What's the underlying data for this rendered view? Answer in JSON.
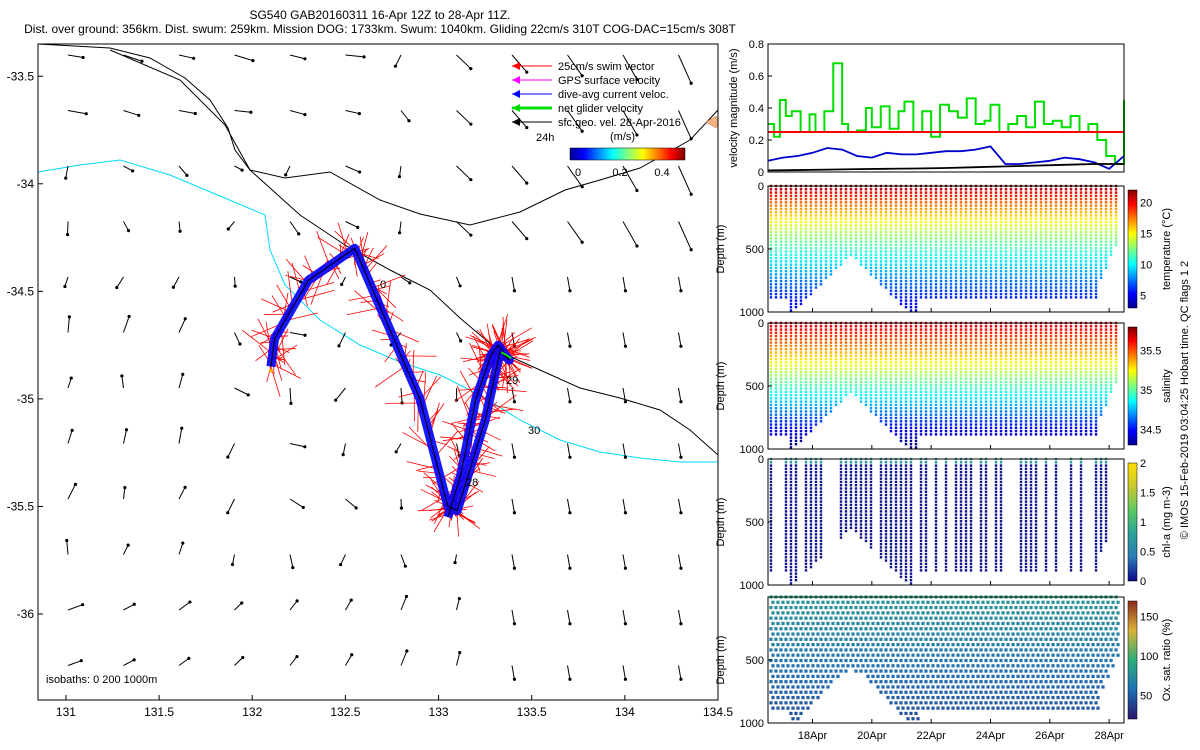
{
  "header": {
    "line1": "SG540 GAB20160311 16-Apr 12Z to 28-Apr 11Z.",
    "line2": "Dist. over ground: 356km. Dist. swum: 259km. Mission DOG: 1733km. Swum: 1040km. Gliding 22cm/s 310T COG-DAC=15cm/s 308T"
  },
  "credit": "© IMOS 15-Feb-2019 03:04:25 Hobart time. QC flags 1  2",
  "chart_data": [
    {
      "type": "map",
      "x_ticks": [
        "131",
        "131.5",
        "132",
        "132.5",
        "133",
        "133.5",
        "134",
        "134.5"
      ],
      "y_ticks": [
        "-33.5",
        "-34",
        "-34.5",
        "-35",
        "-35.5",
        "-36"
      ],
      "xlim": [
        130.85,
        134.5
      ],
      "ylim": [
        -36.4,
        -33.35
      ],
      "legend": {
        "items": [
          {
            "label": "25cm/s swim vector",
            "color": "#ff0000"
          },
          {
            "label": "GPS surface velocity",
            "color": "#ff00ff"
          },
          {
            "label": "dive-avg current veloc.",
            "color": "#0000ff"
          },
          {
            "label": "net glider velocity",
            "color": "#00dd00"
          },
          {
            "label": "sfc.geo. vel. 28-Apr-2016",
            "color": "#000000"
          }
        ],
        "time_label": "24h",
        "colorbar_unit": "(m/s)",
        "colorbar_ticks": [
          "0",
          "0.2",
          "0.4"
        ]
      },
      "isobaths_label": "isobaths: 0   200  1000m",
      "track_labels": [
        "0",
        "29",
        "30",
        "28"
      ],
      "glider_track": {
        "lon": [
          132.1,
          132.12,
          132.3,
          132.55,
          132.7,
          132.9,
          133.05,
          133.1,
          133.25,
          133.33,
          133.38,
          133.32,
          133.28,
          133.2,
          133.12,
          133.05
        ],
        "lat": [
          -34.85,
          -34.72,
          -34.45,
          -34.3,
          -34.6,
          -35.0,
          -35.5,
          -35.52,
          -35.1,
          -34.78,
          -34.82,
          -34.75,
          -34.8,
          -35.0,
          -35.35,
          -35.55
        ]
      }
    },
    {
      "type": "line",
      "ylabel": "velocity magnitude (m/s)",
      "ylim": [
        0,
        0.8
      ],
      "y_ticks": [
        "0",
        "0.2",
        "0.4",
        "0.6",
        "0.8"
      ],
      "x_range_days": [
        16.5,
        28.5
      ],
      "series": [
        {
          "color": "#00dd00",
          "x": [
            16.5,
            16.7,
            16.9,
            17.1,
            17.3,
            17.6,
            17.9,
            18.1,
            18.4,
            18.7,
            19.0,
            19.2,
            19.5,
            19.8,
            20.0,
            20.3,
            20.6,
            20.9,
            21.1,
            21.4,
            21.7,
            22.0,
            22.3,
            22.6,
            22.9,
            23.2,
            23.5,
            23.8,
            24.0,
            24.3,
            24.6,
            24.9,
            25.2,
            25.5,
            25.8,
            26.1,
            26.4,
            26.7,
            27.0,
            27.3,
            27.6,
            27.9,
            28.2,
            28.5
          ],
          "values": [
            0.3,
            0.22,
            0.45,
            0.35,
            0.38,
            0.25,
            0.36,
            0.25,
            0.38,
            0.68,
            0.3,
            0.25,
            0.26,
            0.4,
            0.28,
            0.41,
            0.27,
            0.38,
            0.44,
            0.25,
            0.38,
            0.22,
            0.42,
            0.38,
            0.34,
            0.46,
            0.3,
            0.32,
            0.42,
            0.25,
            0.3,
            0.35,
            0.28,
            0.44,
            0.3,
            0.32,
            0.28,
            0.35,
            0.25,
            0.3,
            0.2,
            0.1,
            0.05,
            0.45
          ]
        },
        {
          "color": "#0000cc",
          "x": [
            16.5,
            17,
            17.5,
            18,
            18.5,
            19,
            19.5,
            20,
            20.5,
            21,
            21.5,
            22,
            22.5,
            23,
            23.5,
            24,
            24.5,
            25,
            25.5,
            26,
            26.5,
            27,
            27.5,
            28,
            28.5
          ],
          "values": [
            0.07,
            0.09,
            0.1,
            0.12,
            0.15,
            0.14,
            0.1,
            0.09,
            0.12,
            0.11,
            0.11,
            0.12,
            0.13,
            0.13,
            0.14,
            0.16,
            0.05,
            0.05,
            0.06,
            0.07,
            0.09,
            0.08,
            0.06,
            0.02,
            0.1
          ]
        },
        {
          "color": "#000000",
          "x": [
            16.5,
            17.5,
            18.5,
            19.5,
            20.5,
            21.5,
            22.5,
            23.5,
            24.5,
            25.5,
            26.5,
            27.5,
            28.5
          ],
          "values": [
            0.01,
            0.012,
            0.015,
            0.018,
            0.02,
            0.022,
            0.025,
            0.03,
            0.035,
            0.04,
            0.045,
            0.05,
            0.05
          ]
        },
        {
          "color": "#ff0000",
          "x": [
            16.5,
            28.5
          ],
          "values": [
            0.25,
            0.25
          ]
        }
      ]
    },
    {
      "type": "scatter",
      "ylabel": "Depth (m)",
      "y_ticks": [
        "0",
        "500",
        "1000"
      ],
      "ylim": [
        1000,
        0
      ],
      "colorbar_label": "temperature (°C)",
      "colorbar_ticks": [
        "5",
        "10",
        "15",
        "20"
      ],
      "clim": [
        3,
        22
      ]
    },
    {
      "type": "scatter",
      "ylabel": "Depth (m)",
      "y_ticks": [
        "0",
        "500",
        "1000"
      ],
      "ylim": [
        1000,
        0
      ],
      "colorbar_label": "salinity",
      "colorbar_ticks": [
        "34.5",
        "35",
        "35.5"
      ],
      "clim": [
        34.3,
        35.8
      ]
    },
    {
      "type": "scatter",
      "ylabel": "Depth (m)",
      "y_ticks": [
        "0",
        "500",
        "1000"
      ],
      "ylim": [
        1000,
        0
      ],
      "colorbar_label": "chl-a (mg m-3)",
      "colorbar_ticks": [
        "0",
        "0.5",
        "1",
        "1.5",
        "2"
      ],
      "clim": [
        0,
        2
      ]
    },
    {
      "type": "scatter",
      "ylabel": "Depth (m)",
      "y_ticks": [
        "500",
        "1000"
      ],
      "ylim": [
        1000,
        0
      ],
      "colorbar_label": "Ox. sat. ratio (%)",
      "colorbar_ticks": [
        "50",
        "100",
        "150"
      ],
      "clim": [
        20,
        170
      ],
      "x_ticks": [
        "18Apr",
        "20Apr",
        "22Apr",
        "24Apr",
        "26Apr",
        "28Apr"
      ]
    }
  ]
}
